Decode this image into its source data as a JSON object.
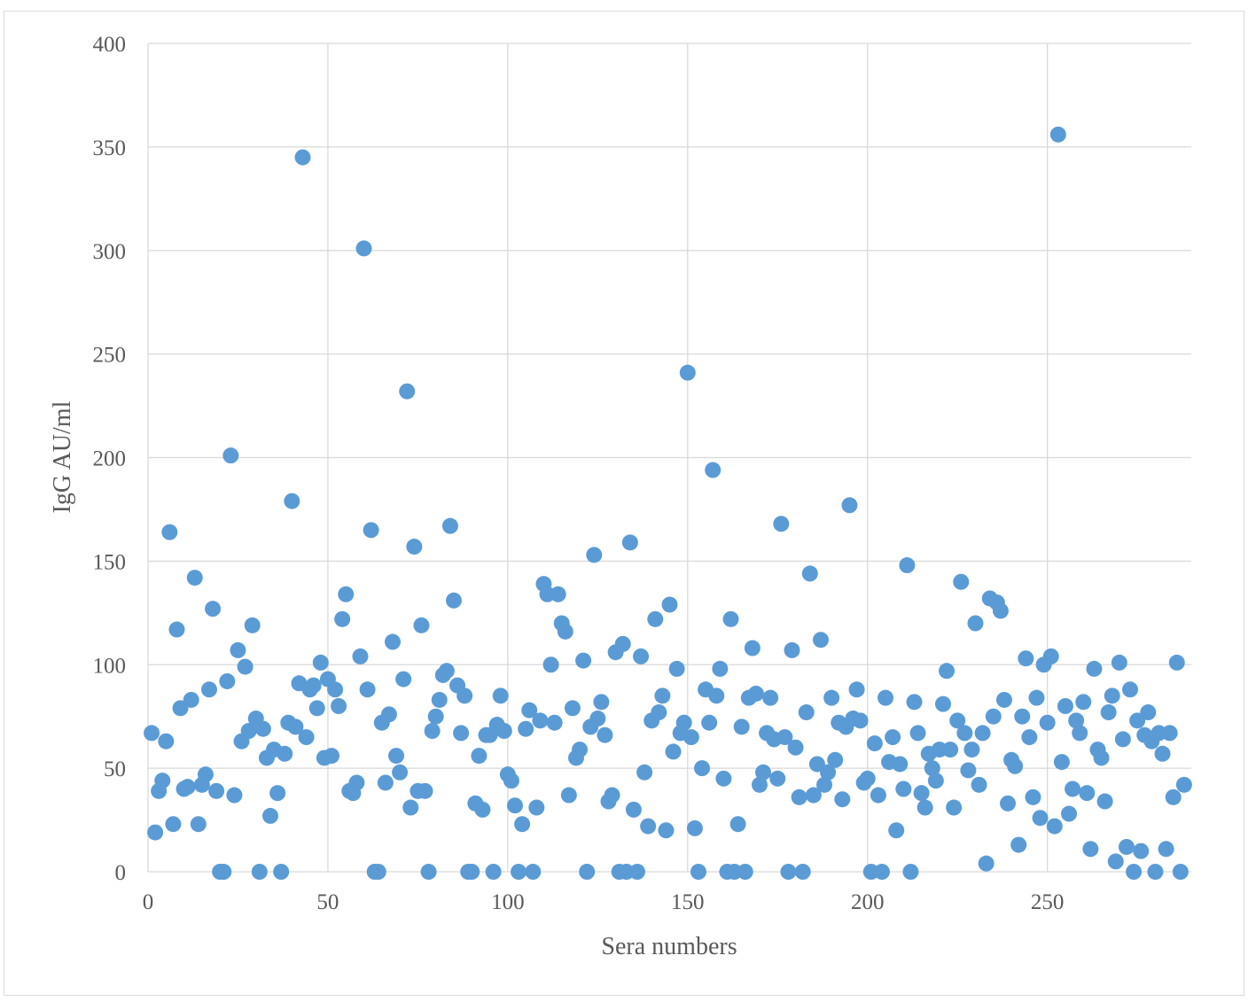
{
  "chart_data": {
    "type": "scatter",
    "title": "",
    "xlabel": "Sera numbers",
    "ylabel": "IgG AU/ml",
    "xlim": [
      0,
      290
    ],
    "ylim": [
      0,
      400
    ],
    "xticks": [
      0,
      50,
      100,
      150,
      200,
      250
    ],
    "yticks": [
      0,
      50,
      100,
      150,
      200,
      250,
      300,
      350,
      400
    ],
    "grid": true,
    "legend": "none",
    "marker_color": "#5b9bd5",
    "series": [
      {
        "y": [
          67,
          19,
          39,
          44,
          63,
          164,
          23,
          117,
          79,
          40,
          41,
          83,
          142,
          23,
          42,
          47,
          88,
          127,
          39,
          0,
          0,
          92,
          201,
          37,
          107,
          63,
          99,
          68,
          119,
          74,
          0,
          69,
          55,
          27,
          59,
          38,
          0,
          57,
          72,
          179,
          70,
          91,
          345,
          65,
          88,
          90,
          79,
          101,
          55,
          93,
          56,
          88,
          80,
          122,
          134,
          39,
          38,
          43,
          104,
          301,
          88,
          165,
          0,
          0,
          72,
          43,
          76,
          111,
          56,
          48,
          93,
          232,
          31,
          157,
          39,
          119,
          39,
          0,
          68,
          75,
          83,
          95,
          97,
          167,
          131,
          90,
          67,
          85,
          0,
          0,
          33,
          56,
          30,
          66,
          66,
          0,
          71,
          85,
          68,
          47,
          44,
          32,
          0,
          23,
          69,
          78,
          0,
          31,
          73,
          139,
          134,
          100,
          72,
          134,
          120,
          116,
          37,
          79,
          55,
          59,
          102,
          0,
          70,
          153,
          74,
          82,
          66,
          34,
          37,
          106,
          0,
          110,
          0,
          159,
          30,
          0,
          104,
          48,
          22,
          73,
          122,
          77,
          85,
          20,
          129,
          58,
          98,
          67,
          72,
          241,
          65,
          21,
          0,
          50,
          88,
          72,
          194,
          85,
          98,
          45,
          0,
          122,
          0,
          23,
          70,
          0,
          84,
          108,
          86,
          42,
          48,
          67,
          84,
          64,
          45,
          168,
          65,
          0,
          107,
          60,
          36,
          0,
          77,
          144,
          37,
          52,
          112,
          42,
          48,
          84,
          54,
          72,
          35,
          70,
          177,
          74,
          88,
          73,
          43,
          45,
          0,
          62,
          37,
          0,
          84,
          53,
          65,
          20,
          52,
          40,
          148,
          0,
          82,
          67,
          38,
          31,
          57,
          50,
          44,
          59,
          81,
          97,
          59,
          31,
          73,
          140,
          67,
          49,
          59,
          120,
          42,
          67,
          4,
          132,
          75,
          130,
          126,
          83,
          33,
          54,
          51,
          13,
          75,
          103,
          65,
          36,
          84,
          26,
          100,
          72,
          104,
          22,
          356,
          53,
          80,
          28,
          40,
          73,
          67,
          82,
          38,
          11,
          98,
          59,
          55,
          34,
          77,
          85,
          5,
          101,
          64,
          12,
          88,
          0,
          73,
          10,
          66,
          77,
          63,
          0,
          67,
          57,
          11,
          67,
          36,
          101,
          0,
          42
        ]
      }
    ]
  }
}
